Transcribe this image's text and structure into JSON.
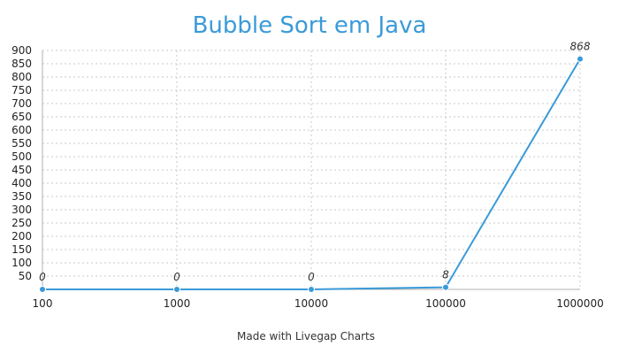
{
  "chart_data": {
    "type": "line",
    "title": "Bubble Sort em Java",
    "xlabel": "",
    "ylabel": "",
    "categories": [
      "100",
      "1000",
      "10000",
      "100000",
      "1000000"
    ],
    "series": [
      {
        "values": [
          0,
          0,
          0,
          8,
          868
        ],
        "data_labels": [
          "0",
          "0",
          "0",
          "8",
          "868"
        ],
        "color": "#3a9ad9"
      }
    ],
    "yticks": [
      50,
      100,
      150,
      200,
      250,
      300,
      350,
      400,
      450,
      500,
      550,
      600,
      650,
      700,
      750,
      800,
      850,
      900
    ],
    "ylim": [
      0,
      900
    ],
    "grid": true
  },
  "footer": {
    "credit": "Made with Livegap Charts"
  }
}
